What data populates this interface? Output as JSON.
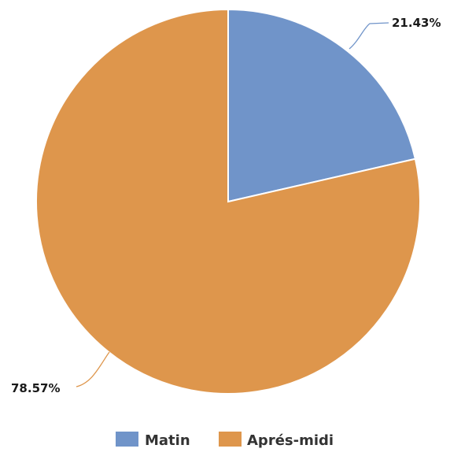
{
  "chart_data": {
    "type": "pie",
    "categories": [
      "Matin",
      "Aprés-midi"
    ],
    "values": [
      21.43,
      78.57
    ],
    "labels": [
      "21.43%",
      "78.57%"
    ],
    "colors": [
      "#7094c9",
      "#de964c"
    ],
    "start_angle": "12 o'clock",
    "direction": "clockwise",
    "legend_position": "bottom"
  }
}
